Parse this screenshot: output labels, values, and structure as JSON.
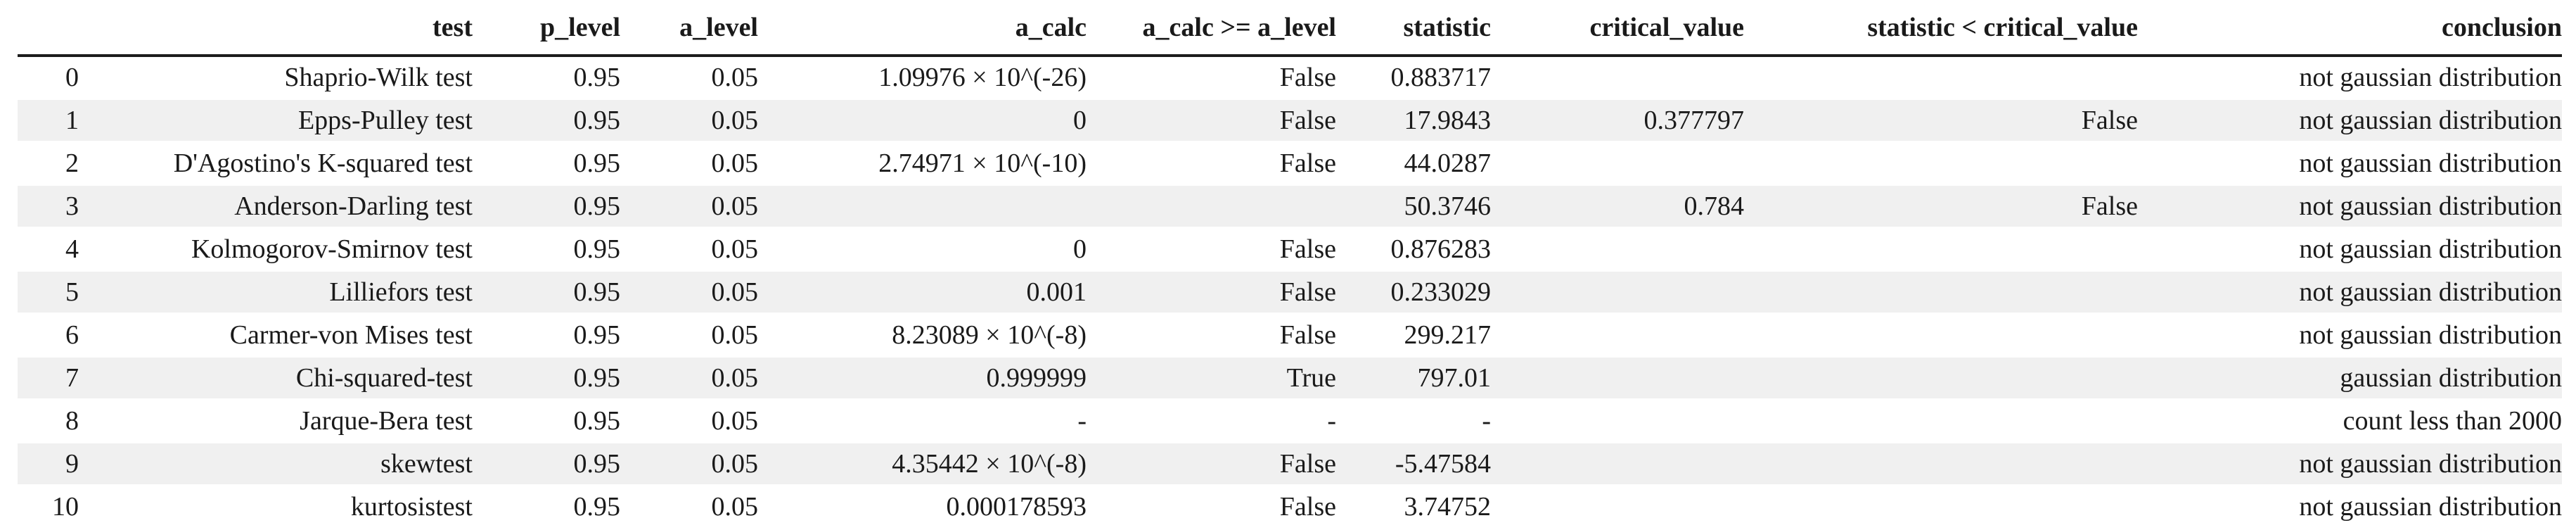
{
  "colors": {
    "background": "#ffffff",
    "text": "#1a1a1a",
    "header_border": "#1c1c1c",
    "row_stripe": "#f0f0f0",
    "row_plain": "#ffffff"
  },
  "chart_data": {
    "type": "table",
    "title": "",
    "columns": [
      "",
      "test",
      "p_level",
      "a_level",
      "a_calc",
      "a_calc >= a_level",
      "statistic",
      "critical_value",
      "statistic < critical_value",
      "conclusion"
    ],
    "column_keys": [
      "index",
      "test",
      "p_level",
      "a_level",
      "a_calc",
      "a_calc_ge_a_level",
      "statistic",
      "critical_value",
      "statistic_lt_critical_value",
      "conclusion"
    ],
    "rows": [
      {
        "index": "0",
        "test": "Shaprio-Wilk test",
        "p_level": "0.95",
        "a_level": "0.05",
        "a_calc": "1.09976 × 10^(-26)",
        "a_calc_ge_a_level": "False",
        "statistic": "0.883717",
        "critical_value": "",
        "statistic_lt_critical_value": "",
        "conclusion": "not gaussian distribution"
      },
      {
        "index": "1",
        "test": "Epps-Pulley test",
        "p_level": "0.95",
        "a_level": "0.05",
        "a_calc": "0",
        "a_calc_ge_a_level": "False",
        "statistic": "17.9843",
        "critical_value": "0.377797",
        "statistic_lt_critical_value": "False",
        "conclusion": "not gaussian distribution"
      },
      {
        "index": "2",
        "test": "D'Agostino's K-squared test",
        "p_level": "0.95",
        "a_level": "0.05",
        "a_calc": "2.74971 × 10^(-10)",
        "a_calc_ge_a_level": "False",
        "statistic": "44.0287",
        "critical_value": "",
        "statistic_lt_critical_value": "",
        "conclusion": "not gaussian distribution"
      },
      {
        "index": "3",
        "test": "Anderson-Darling test",
        "p_level": "0.95",
        "a_level": "0.05",
        "a_calc": "",
        "a_calc_ge_a_level": "",
        "statistic": "50.3746",
        "critical_value": "0.784",
        "statistic_lt_critical_value": "False",
        "conclusion": "not gaussian distribution"
      },
      {
        "index": "4",
        "test": "Kolmogorov-Smirnov test",
        "p_level": "0.95",
        "a_level": "0.05",
        "a_calc": "0",
        "a_calc_ge_a_level": "False",
        "statistic": "0.876283",
        "critical_value": "",
        "statistic_lt_critical_value": "",
        "conclusion": "not gaussian distribution"
      },
      {
        "index": "5",
        "test": "Lilliefors test",
        "p_level": "0.95",
        "a_level": "0.05",
        "a_calc": "0.001",
        "a_calc_ge_a_level": "False",
        "statistic": "0.233029",
        "critical_value": "",
        "statistic_lt_critical_value": "",
        "conclusion": "not gaussian distribution"
      },
      {
        "index": "6",
        "test": "Carmer-von Mises test",
        "p_level": "0.95",
        "a_level": "0.05",
        "a_calc": "8.23089 × 10^(-8)",
        "a_calc_ge_a_level": "False",
        "statistic": "299.217",
        "critical_value": "",
        "statistic_lt_critical_value": "",
        "conclusion": "not gaussian distribution"
      },
      {
        "index": "7",
        "test": "Chi-squared-test",
        "p_level": "0.95",
        "a_level": "0.05",
        "a_calc": "0.999999",
        "a_calc_ge_a_level": "True",
        "statistic": "797.01",
        "critical_value": "",
        "statistic_lt_critical_value": "",
        "conclusion": "gaussian distribution"
      },
      {
        "index": "8",
        "test": "Jarque-Bera test",
        "p_level": "0.95",
        "a_level": "0.05",
        "a_calc": "-",
        "a_calc_ge_a_level": "-",
        "statistic": "-",
        "critical_value": "",
        "statistic_lt_critical_value": "",
        "conclusion": "count less than 2000"
      },
      {
        "index": "9",
        "test": "skewtest",
        "p_level": "0.95",
        "a_level": "0.05",
        "a_calc": "4.35442 × 10^(-8)",
        "a_calc_ge_a_level": "False",
        "statistic": "-5.47584",
        "critical_value": "",
        "statistic_lt_critical_value": "",
        "conclusion": "not gaussian distribution"
      },
      {
        "index": "10",
        "test": "kurtosistest",
        "p_level": "0.95",
        "a_level": "0.05",
        "a_calc": "0.000178593",
        "a_calc_ge_a_level": "False",
        "statistic": "3.74752",
        "critical_value": "",
        "statistic_lt_critical_value": "",
        "conclusion": "not gaussian distribution"
      }
    ]
  }
}
